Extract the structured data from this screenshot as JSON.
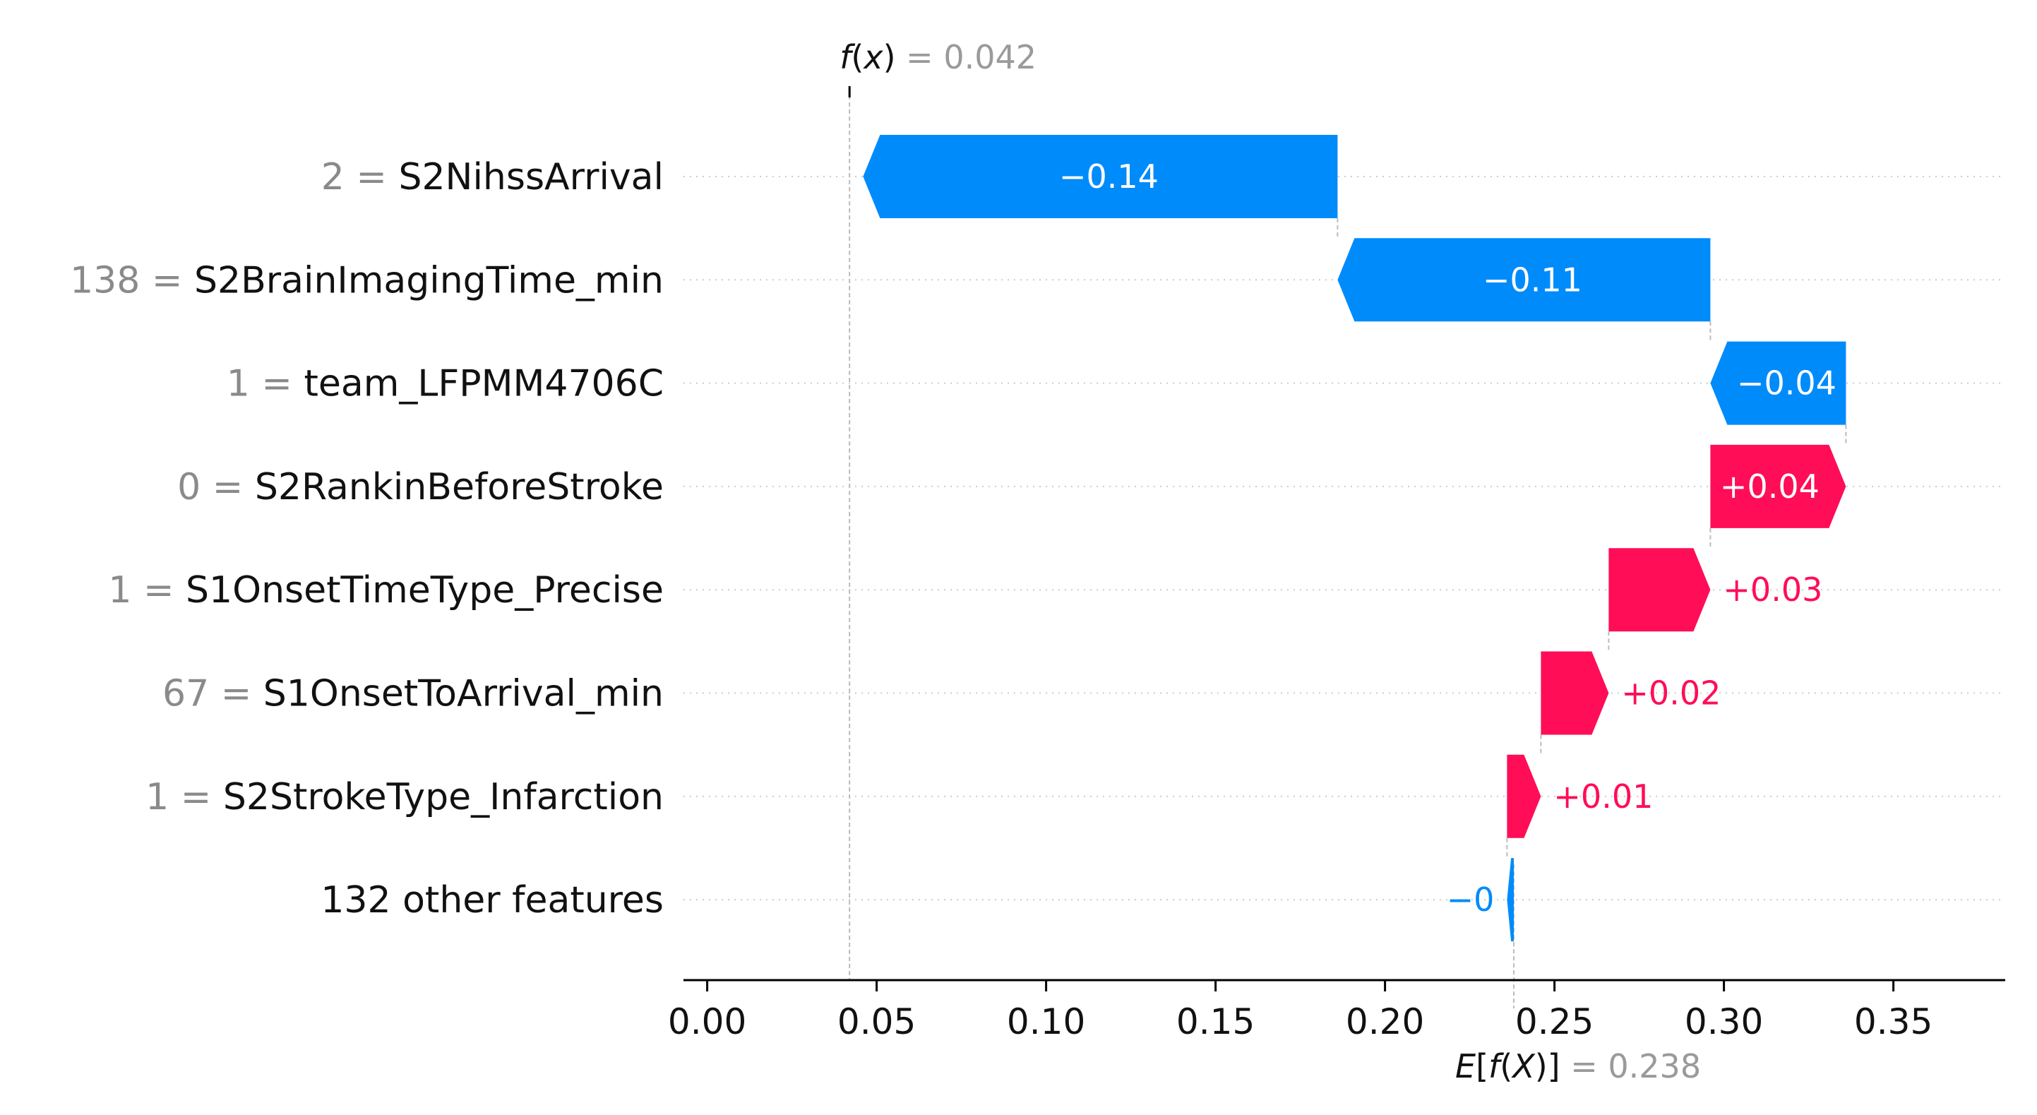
{
  "chart_data": {
    "type": "waterfall",
    "features": [
      {
        "value": "2",
        "name": "S2NihssArrival",
        "contribution": -0.14,
        "label": "−0.14"
      },
      {
        "value": "138",
        "name": "S2BrainImagingTime_min",
        "contribution": -0.11,
        "label": "−0.11"
      },
      {
        "value": "1",
        "name": "team_LFPMM4706C",
        "contribution": -0.04,
        "label": "−0.04"
      },
      {
        "value": "0",
        "name": "S2RankinBeforeStroke",
        "contribution": 0.04,
        "label": "+0.04"
      },
      {
        "value": "1",
        "name": "S1OnsetTimeType_Precise",
        "contribution": 0.03,
        "label": "+0.03"
      },
      {
        "value": "67",
        "name": "S1OnsetToArrival_min",
        "contribution": 0.02,
        "label": "+0.02"
      },
      {
        "value": "1",
        "name": "S2StrokeType_Infarction",
        "contribution": 0.01,
        "label": "+0.01"
      },
      {
        "value": "",
        "name": "132 other features",
        "contribution": -0.002,
        "label": "−0"
      }
    ],
    "fx": {
      "label_f": "f",
      "label_x": "x",
      "value": "0.042",
      "numeric": 0.042
    },
    "base": {
      "label_E": "E",
      "label_f": "f",
      "label_X": "X",
      "value": "0.238",
      "numeric": 0.238
    },
    "x_ticks": [
      "0.00",
      "0.05",
      "0.10",
      "0.15",
      "0.20",
      "0.25",
      "0.30",
      "0.35"
    ],
    "x_tick_values": [
      0.0,
      0.05,
      0.1,
      0.15,
      0.2,
      0.25,
      0.3,
      0.35
    ],
    "xlim": [
      -0.007,
      0.383
    ],
    "colors": {
      "positive": "#ff0d57",
      "negative": "#008bfb",
      "axis": "#000000",
      "grid": "#cccccc",
      "muted": "#9a9a9a"
    }
  }
}
